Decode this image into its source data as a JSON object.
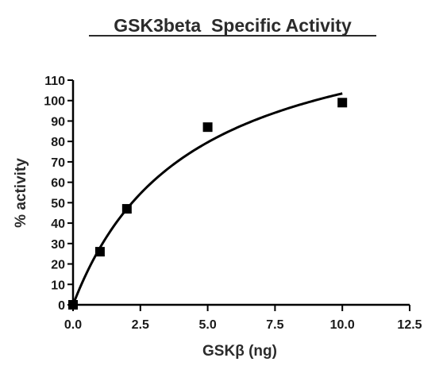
{
  "chart_data": {
    "type": "scatter",
    "title": "GSK3beta  Specific Activity",
    "xlabel": "GSKβ (ng)",
    "ylabel": "% activity",
    "xlim": [
      0,
      12.5
    ],
    "ylim": [
      0,
      110
    ],
    "x_ticks": [
      "0.0",
      "2.5",
      "5.0",
      "7.5",
      "10.0",
      "12.5"
    ],
    "y_ticks": [
      "0",
      "10",
      "20",
      "30",
      "40",
      "50",
      "60",
      "70",
      "80",
      "90",
      "100",
      "110"
    ],
    "grid": false,
    "legend": "none",
    "series": [
      {
        "points": [
          {
            "x": 0,
            "y": 0
          },
          {
            "x": 1,
            "y": 26
          },
          {
            "x": 2,
            "y": 47
          },
          {
            "x": 5,
            "y": 87
          },
          {
            "x": 10,
            "y": 99
          }
        ],
        "marker": "square",
        "color": "#000000"
      }
    ],
    "fit_curve": {
      "type": "michaelis-menten",
      "vmax": 148,
      "km": 4.3,
      "x_range": [
        0,
        10
      ],
      "color": "#000000"
    }
  }
}
